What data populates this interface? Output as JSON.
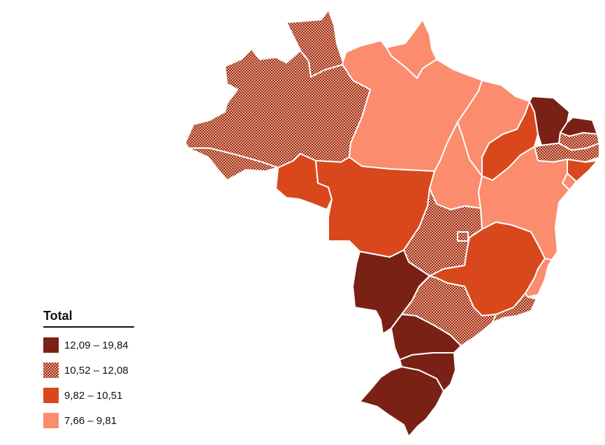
{
  "legend": {
    "title": "Total",
    "items": [
      {
        "label": "12,09 – 19,84",
        "color": "#7a2116",
        "pattern": "solid"
      },
      {
        "label": "10,52 – 12,08",
        "color": "#b8442f",
        "pattern": "checker"
      },
      {
        "label": "9,82 – 10,51",
        "color": "#d9481c",
        "pattern": "solid"
      },
      {
        "label": "7,66 – 9,81",
        "color": "#fb8c6e",
        "pattern": "solid"
      }
    ]
  },
  "colors": {
    "class1": "#7a2116",
    "class2_dark": "#8e2f1f",
    "class2_light": "#f0a183",
    "class3": "#d9481c",
    "class4": "#fb8c6e",
    "border": "#ffffff"
  },
  "map_data": {
    "regions": [
      {
        "id": "AM",
        "class": 2
      },
      {
        "id": "RR",
        "class": 2
      },
      {
        "id": "AP",
        "class": 4
      },
      {
        "id": "PA",
        "class": 4
      },
      {
        "id": "AC",
        "class": 2
      },
      {
        "id": "RO",
        "class": 3
      },
      {
        "id": "MT",
        "class": 3
      },
      {
        "id": "TO",
        "class": 4
      },
      {
        "id": "MA",
        "class": 4
      },
      {
        "id": "PI",
        "class": 3
      },
      {
        "id": "CE",
        "class": 1
      },
      {
        "id": "RN",
        "class": 1
      },
      {
        "id": "PB",
        "class": 2
      },
      {
        "id": "PE",
        "class": 2
      },
      {
        "id": "AL",
        "class": 3
      },
      {
        "id": "SE",
        "class": 4
      },
      {
        "id": "BA",
        "class": 4
      },
      {
        "id": "GO",
        "class": 2
      },
      {
        "id": "DF",
        "class": 2
      },
      {
        "id": "MG",
        "class": 3
      },
      {
        "id": "ES",
        "class": 4
      },
      {
        "id": "MS",
        "class": 1
      },
      {
        "id": "SP",
        "class": 2
      },
      {
        "id": "RJ",
        "class": 2
      },
      {
        "id": "PR",
        "class": 1
      },
      {
        "id": "SC",
        "class": 1
      },
      {
        "id": "RS",
        "class": 1
      }
    ]
  }
}
